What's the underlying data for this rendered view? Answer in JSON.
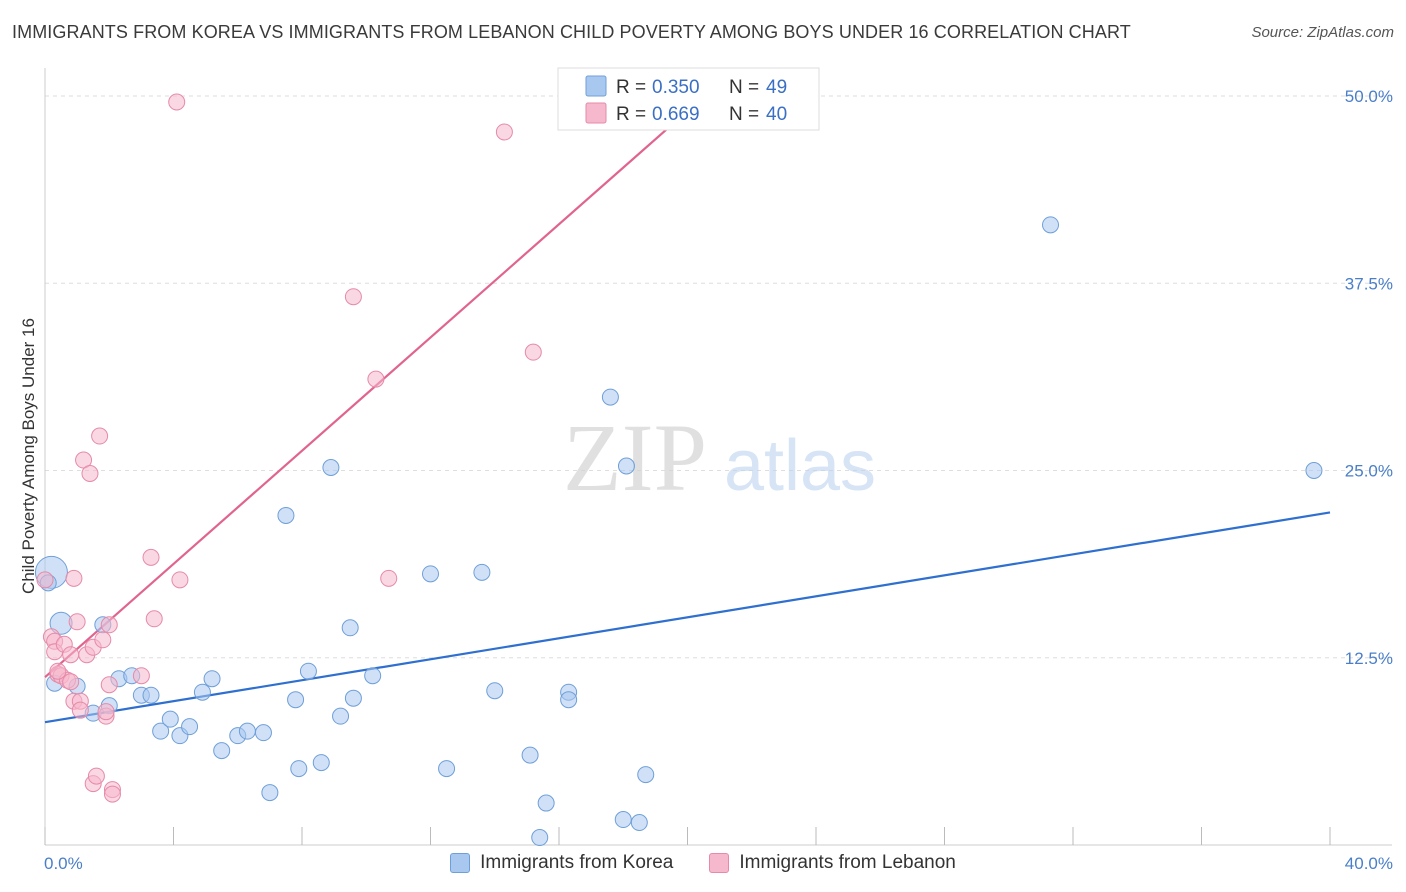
{
  "chart_data": {
    "type": "scatter",
    "title": "IMMIGRANTS FROM KOREA VS IMMIGRANTS FROM LEBANON CHILD POVERTY AMONG BOYS UNDER 16 CORRELATION CHART",
    "source": "Source: ZipAtlas.com",
    "ylabel": "Child Poverty Among Boys Under 16",
    "xlabel": "",
    "xlim": [
      0,
      40
    ],
    "ylim": [
      0,
      50
    ],
    "x_tick_labels": [
      "0.0%",
      "40.0%"
    ],
    "y_tick_values": [
      12.5,
      25.0,
      37.5,
      50.0
    ],
    "y_tick_labels": [
      "12.5%",
      "25.0%",
      "37.5%",
      "50.0%"
    ],
    "grid": true,
    "legend_top": {
      "r_label": "R =",
      "n_label": "N =",
      "rows": [
        {
          "r": "0.350",
          "n": "49",
          "color": "#a9c8f0"
        },
        {
          "r": "0.669",
          "n": "40",
          "color": "#f6b8cc"
        }
      ]
    },
    "series": [
      {
        "name": "Immigrants from Korea",
        "color": "#a9c8f0",
        "stroke": "#6f9fd8",
        "line_color": "#2e6fcf",
        "trend": {
          "x": [
            0,
            40
          ],
          "y": [
            8.2,
            22.2
          ]
        },
        "points": [
          [
            0.2,
            18.2
          ],
          [
            0.5,
            14.8
          ],
          [
            1.0,
            10.6
          ],
          [
            1.5,
            8.8
          ],
          [
            1.8,
            14.7
          ],
          [
            2.0,
            9.3
          ],
          [
            2.3,
            11.1
          ],
          [
            2.7,
            11.3
          ],
          [
            3.0,
            10.0
          ],
          [
            3.3,
            10.0
          ],
          [
            3.6,
            7.6
          ],
          [
            3.9,
            8.4
          ],
          [
            4.2,
            7.3
          ],
          [
            4.5,
            7.9
          ],
          [
            4.9,
            10.2
          ],
          [
            5.2,
            11.1
          ],
          [
            5.5,
            6.3
          ],
          [
            6.0,
            7.3
          ],
          [
            6.3,
            7.6
          ],
          [
            6.8,
            7.5
          ],
          [
            7.0,
            3.5
          ],
          [
            7.5,
            22.0
          ],
          [
            7.8,
            9.7
          ],
          [
            7.9,
            5.1
          ],
          [
            8.2,
            11.6
          ],
          [
            8.6,
            5.5
          ],
          [
            8.9,
            25.2
          ],
          [
            9.2,
            8.6
          ],
          [
            9.5,
            14.5
          ],
          [
            9.6,
            9.8
          ],
          [
            10.2,
            11.3
          ],
          [
            12.0,
            18.1
          ],
          [
            12.5,
            5.1
          ],
          [
            13.6,
            18.2
          ],
          [
            14.0,
            10.3
          ],
          [
            15.1,
            6.0
          ],
          [
            15.4,
            0.5
          ],
          [
            15.6,
            2.8
          ],
          [
            16.3,
            10.2
          ],
          [
            16.3,
            9.7
          ],
          [
            17.6,
            29.9
          ],
          [
            18.0,
            1.7
          ],
          [
            18.1,
            25.3
          ],
          [
            18.5,
            1.5
          ],
          [
            18.7,
            4.7
          ],
          [
            31.3,
            41.4
          ],
          [
            39.5,
            25.0
          ],
          [
            0.1,
            17.5
          ],
          [
            0.3,
            10.8
          ]
        ]
      },
      {
        "name": "Immigrants from Lebanon",
        "color": "#f6b8cc",
        "stroke": "#e68aa8",
        "line_color": "#e0648f",
        "trend": {
          "x": [
            0,
            20
          ],
          "y": [
            11.2,
            49.0
          ]
        },
        "points": [
          [
            0.0,
            17.7
          ],
          [
            0.2,
            13.9
          ],
          [
            0.3,
            13.6
          ],
          [
            0.3,
            12.9
          ],
          [
            0.4,
            11.4
          ],
          [
            0.5,
            11.3
          ],
          [
            0.6,
            13.4
          ],
          [
            0.7,
            11.0
          ],
          [
            0.8,
            12.7
          ],
          [
            0.8,
            10.9
          ],
          [
            0.9,
            17.8
          ],
          [
            0.9,
            9.6
          ],
          [
            1.0,
            14.9
          ],
          [
            1.1,
            9.6
          ],
          [
            1.1,
            9.0
          ],
          [
            1.2,
            25.7
          ],
          [
            1.3,
            12.7
          ],
          [
            1.4,
            24.8
          ],
          [
            1.5,
            13.2
          ],
          [
            1.5,
            4.1
          ],
          [
            1.6,
            4.6
          ],
          [
            1.7,
            27.3
          ],
          [
            1.8,
            13.7
          ],
          [
            1.9,
            8.6
          ],
          [
            1.9,
            8.9
          ],
          [
            2.0,
            14.7
          ],
          [
            2.0,
            10.7
          ],
          [
            2.1,
            3.7
          ],
          [
            2.1,
            3.4
          ],
          [
            3.0,
            11.3
          ],
          [
            3.3,
            19.2
          ],
          [
            3.4,
            15.1
          ],
          [
            4.2,
            17.7
          ],
          [
            4.1,
            49.6
          ],
          [
            9.6,
            36.6
          ],
          [
            10.3,
            31.1
          ],
          [
            10.7,
            17.8
          ],
          [
            14.3,
            47.6
          ],
          [
            15.2,
            32.9
          ],
          [
            0.4,
            11.6
          ]
        ]
      }
    ]
  },
  "legend_bottom": [
    {
      "label": "Immigrants from Korea",
      "color": "#a9c8f0",
      "stroke": "#6f9fd8"
    },
    {
      "label": "Immigrants from Lebanon",
      "color": "#f6b8cc",
      "stroke": "#e68aa8"
    }
  ],
  "watermark": {
    "zip": "ZIP",
    "atlas": "atlas"
  }
}
